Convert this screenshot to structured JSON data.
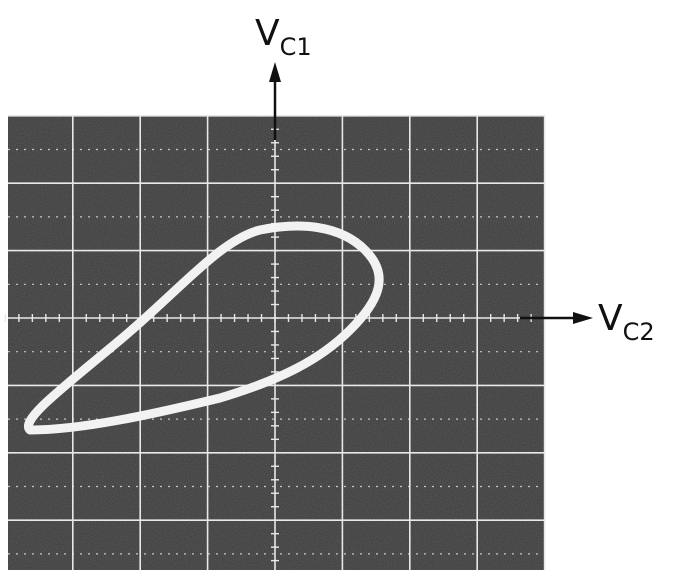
{
  "figure": {
    "y_axis_label": {
      "main": "V",
      "sub": "C1"
    },
    "x_axis_label": {
      "main": "V",
      "sub": "C2"
    }
  }
}
